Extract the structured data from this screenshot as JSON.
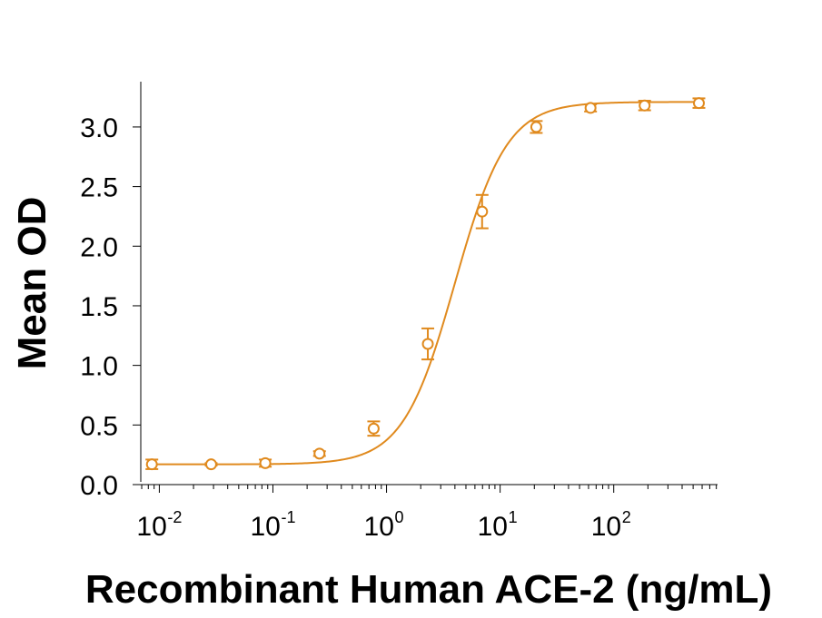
{
  "chart_data": {
    "type": "scatter",
    "title": "",
    "xlabel": "Recombinant Human ACE-2 (ng/mL)",
    "ylabel": "Mean OD",
    "x_scale": "log",
    "xlim": [
      0.0065,
      820
    ],
    "ylim": [
      0.0,
      3.38
    ],
    "grid": false,
    "color": "#E08A1E",
    "y_ticks": [
      "0.0",
      "0.5",
      "1.0",
      "1.5",
      "2.0",
      "2.5",
      "3.0"
    ],
    "x_ticks": [
      {
        "base": "10",
        "exp": "-2",
        "value": 0.01
      },
      {
        "base": "10",
        "exp": "-1",
        "value": 0.1
      },
      {
        "base": "10",
        "exp": "0",
        "value": 1
      },
      {
        "base": "10",
        "exp": "1",
        "value": 10
      },
      {
        "base": "10",
        "exp": "2",
        "value": 100
      }
    ],
    "points": [
      {
        "x": 0.0086,
        "y": 0.17,
        "err": 0.04
      },
      {
        "x": 0.0286,
        "y": 0.17,
        "err": 0.01
      },
      {
        "x": 0.0857,
        "y": 0.18,
        "err": 0.03
      },
      {
        "x": 0.257,
        "y": 0.26,
        "err": 0.02
      },
      {
        "x": 0.771,
        "y": 0.47,
        "err": 0.06
      },
      {
        "x": 2.31,
        "y": 1.18,
        "err": 0.13
      },
      {
        "x": 6.94,
        "y": 2.29,
        "err": 0.14
      },
      {
        "x": 20.8,
        "y": 3.0,
        "err": 0.05
      },
      {
        "x": 62.5,
        "y": 3.16,
        "err": 0.03
      },
      {
        "x": 187.0,
        "y": 3.18,
        "err": 0.04
      },
      {
        "x": 562.0,
        "y": 3.2,
        "err": 0.04
      }
    ],
    "fit_curve": {
      "bottom": 0.17,
      "top": 3.21,
      "ec50": 4.0,
      "hill": 1.9
    }
  }
}
